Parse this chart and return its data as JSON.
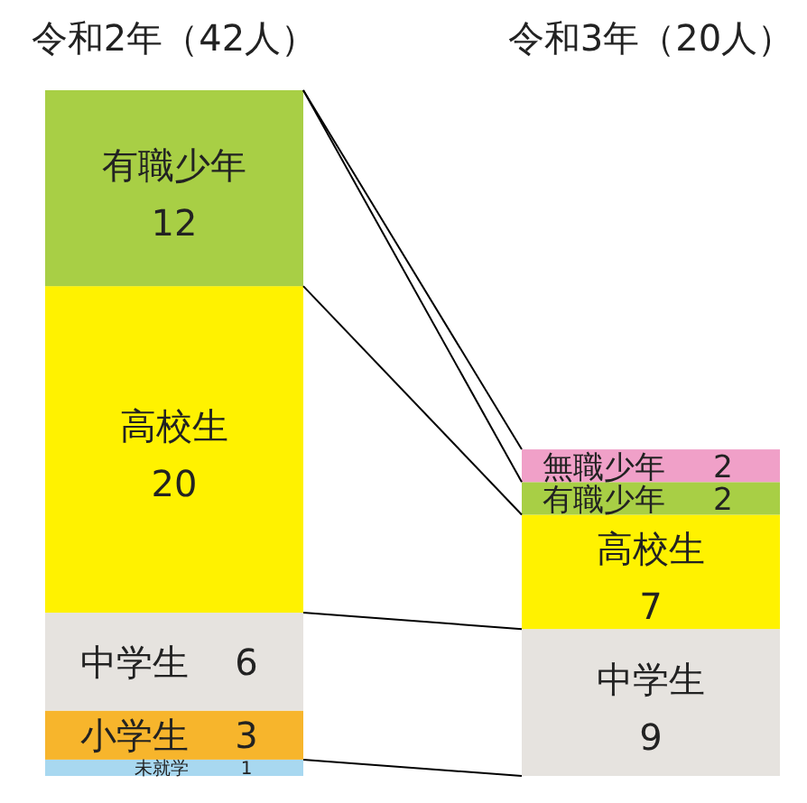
{
  "chart_data": {
    "type": "bar",
    "stacked": true,
    "data_labels": true,
    "categories": [
      "令和2年（42人）",
      "令和3年（20人）"
    ],
    "series": [
      {
        "name": "未就学",
        "color": "#a8d8f0",
        "values": [
          1,
          null
        ]
      },
      {
        "name": "小学生",
        "color": "#f7b52c",
        "values": [
          3,
          null
        ]
      },
      {
        "name": "中学生",
        "color": "#e6e3df",
        "values": [
          6,
          9
        ]
      },
      {
        "name": "高校生",
        "color": "#fff200",
        "values": [
          20,
          7
        ]
      },
      {
        "name": "有職少年",
        "color": "#a8cf45",
        "values": [
          12,
          2
        ]
      },
      {
        "name": "無職少年",
        "color": "#f0a0c8",
        "values": [
          null,
          2
        ]
      }
    ]
  }
}
